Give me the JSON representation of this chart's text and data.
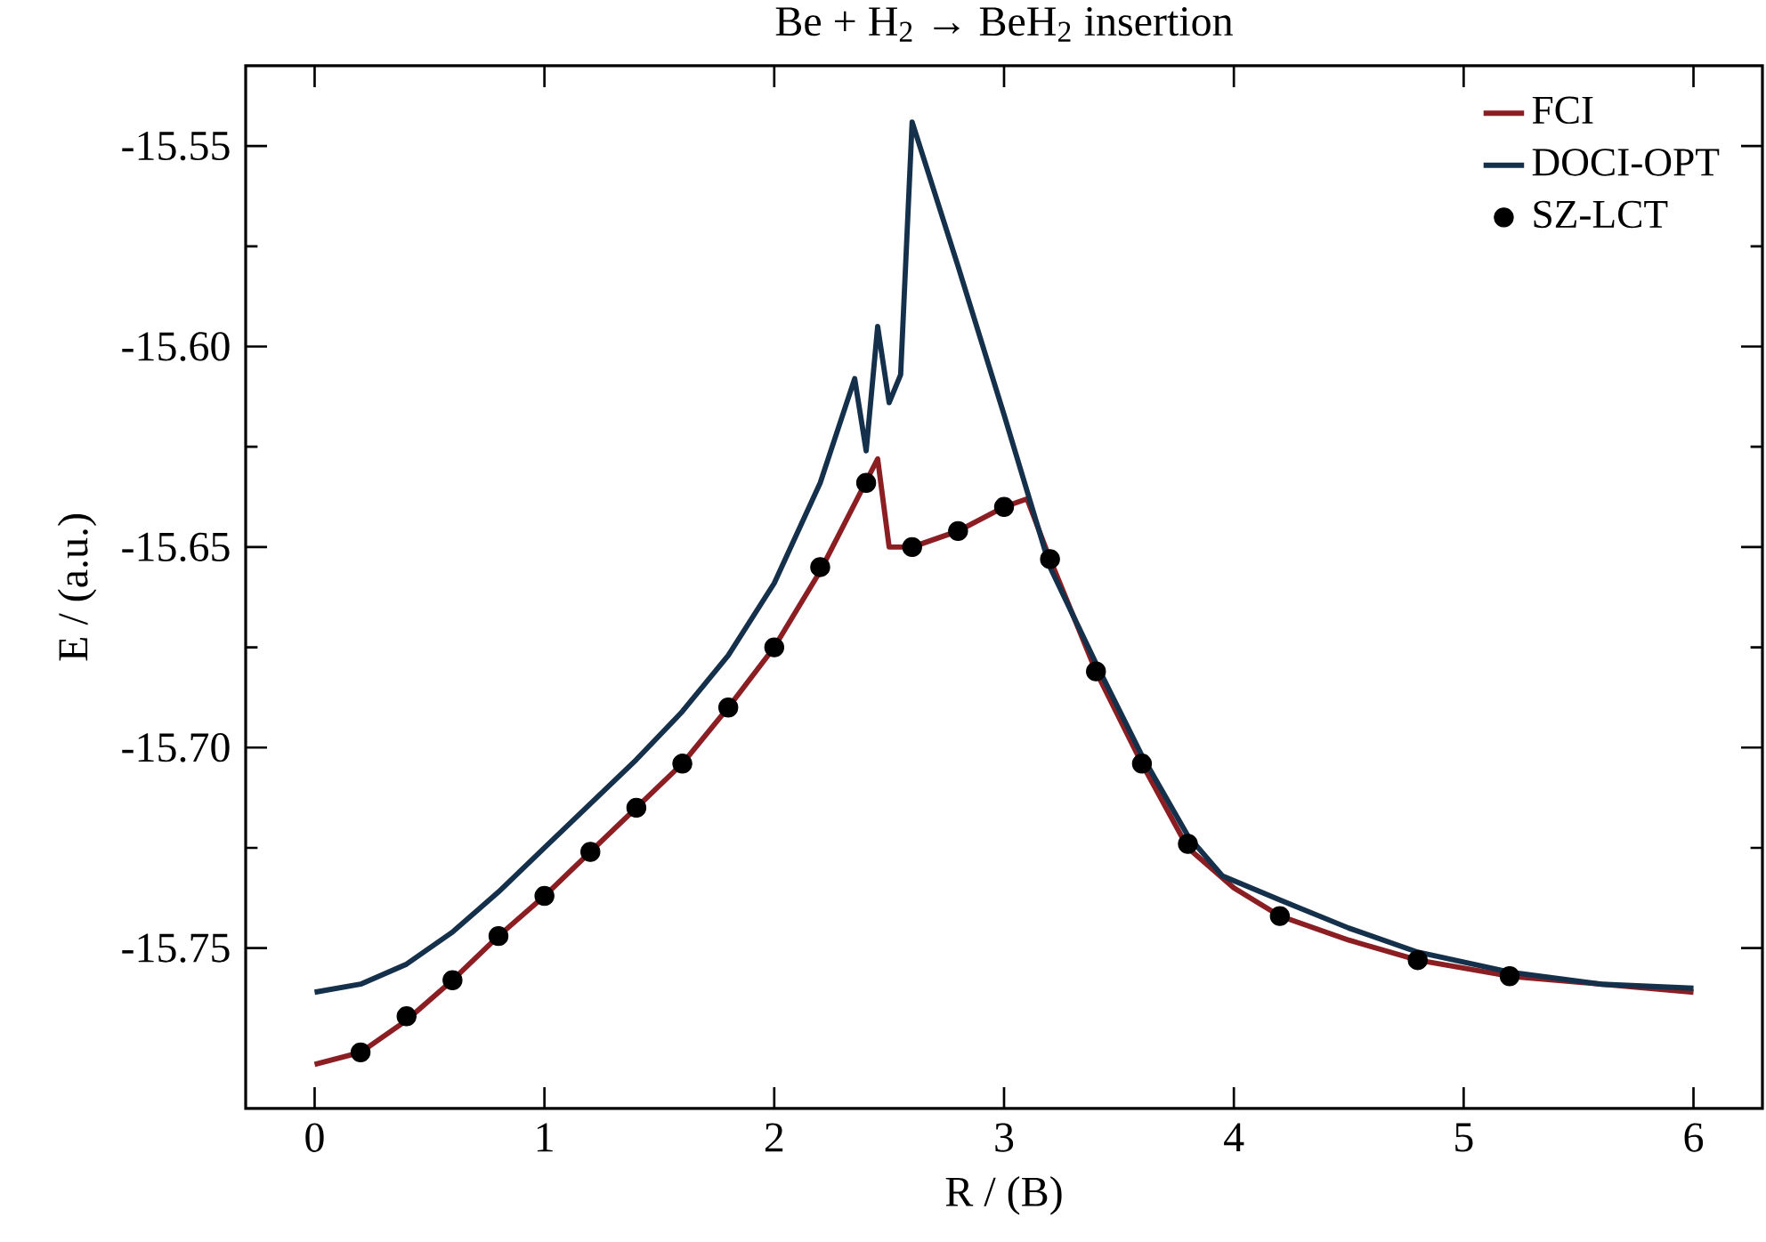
{
  "chart_data": {
    "type": "line",
    "title": "Be + H$_{2}$ → BeH$_{2}$ insertion",
    "xlabel": "R / (B)",
    "ylabel": "E / (a.u.)",
    "xlim": [
      -0.3,
      6.3
    ],
    "ylim": [
      -15.79,
      -15.53
    ],
    "xticks": [
      0,
      1,
      2,
      3,
      4,
      5,
      6
    ],
    "yticks": [
      -15.75,
      {
        "value": -15.7,
        "label": "-15.70"
      },
      -15.65,
      {
        "value": -15.6,
        "label": "-15.60"
      },
      -15.55
    ],
    "grid": false,
    "legend": "top right",
    "series": [
      {
        "name": "FCI",
        "type": "line",
        "color": "#8b1e22",
        "x": [
          0,
          0.2,
          0.4,
          0.6,
          0.8,
          1.0,
          1.2,
          1.4,
          1.6,
          1.8,
          2.0,
          2.2,
          2.45,
          2.5,
          2.6,
          2.8,
          3.0,
          3.1,
          3.2,
          3.4,
          3.6,
          3.8,
          4.0,
          4.2,
          4.5,
          4.8,
          5.2,
          5.6,
          6.0
        ],
        "values": [
          -15.779,
          -15.776,
          -15.768,
          -15.758,
          -15.747,
          -15.737,
          -15.726,
          -15.715,
          -15.704,
          -15.69,
          -15.675,
          -15.656,
          -15.628,
          -15.65,
          -15.65,
          -15.646,
          -15.64,
          -15.638,
          -15.653,
          -15.681,
          -15.704,
          -15.725,
          -15.735,
          -15.742,
          -15.748,
          -15.753,
          -15.757,
          -15.759,
          -15.761
        ]
      },
      {
        "name": "DOCI-OPT",
        "type": "line",
        "color": "#14304a",
        "x": [
          0,
          0.2,
          0.4,
          0.6,
          0.8,
          1.0,
          1.2,
          1.4,
          1.6,
          1.8,
          2.0,
          2.2,
          2.35,
          2.4,
          2.45,
          2.5,
          2.55,
          2.6,
          2.8,
          3.0,
          3.2,
          3.4,
          3.6,
          3.8,
          3.95,
          4.2,
          4.5,
          4.8,
          5.2,
          5.6,
          6.0
        ],
        "values": [
          -15.761,
          -15.759,
          -15.754,
          -15.746,
          -15.736,
          -15.725,
          -15.714,
          -15.703,
          -15.691,
          -15.677,
          -15.659,
          -15.634,
          -15.608,
          -15.626,
          -15.595,
          -15.614,
          -15.607,
          -15.544,
          -15.58,
          -15.617,
          -15.655,
          -15.679,
          -15.702,
          -15.722,
          -15.732,
          -15.738,
          -15.745,
          -15.751,
          -15.756,
          -15.759,
          -15.76
        ]
      },
      {
        "name": "SZ-LCT",
        "type": "scatter",
        "color": "#000000",
        "x": [
          0.2,
          0.4,
          0.6,
          0.8,
          1.0,
          1.2,
          1.4,
          1.6,
          1.8,
          2.0,
          2.2,
          2.4,
          2.6,
          2.8,
          3.0,
          3.2,
          3.4,
          3.6,
          3.8,
          4.2,
          4.8,
          5.2
        ],
        "values": [
          -15.776,
          -15.767,
          -15.758,
          -15.747,
          -15.737,
          -15.726,
          -15.715,
          -15.704,
          -15.69,
          -15.675,
          -15.655,
          -15.634,
          -15.65,
          -15.646,
          -15.64,
          -15.653,
          -15.681,
          -15.704,
          -15.724,
          -15.742,
          -15.753,
          -15.757
        ]
      }
    ]
  }
}
